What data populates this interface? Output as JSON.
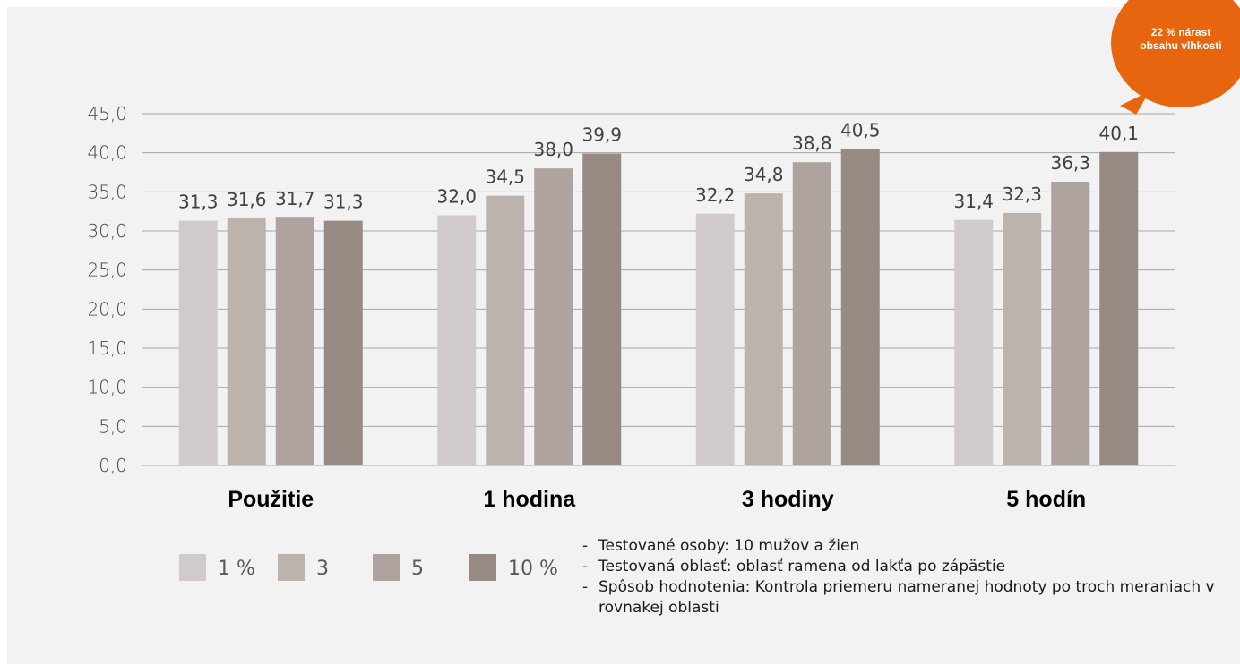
{
  "chart_data": {
    "type": "bar",
    "categories": [
      "Použitie",
      "1 hodina",
      "3 hodiny",
      "5 hodín"
    ],
    "series": [
      {
        "name": "1 %",
        "values": [
          31.3,
          32.0,
          32.2,
          31.4
        ],
        "color": "#d0cbca"
      },
      {
        "name": "3",
        "values": [
          31.6,
          34.5,
          34.8,
          32.3
        ],
        "color": "#bdb3ad"
      },
      {
        "name": "5",
        "values": [
          31.7,
          38.0,
          38.8,
          36.3
        ],
        "color": "#afa39f"
      },
      {
        "name": "10 %",
        "values": [
          31.3,
          39.9,
          40.5,
          40.1
        ],
        "color": "#978a82"
      }
    ],
    "data_labels": [
      [
        "31,3",
        "32,0",
        "32,2",
        "31,4"
      ],
      [
        "31,6",
        "34,5",
        "34,8",
        "32,3"
      ],
      [
        "31,7",
        "38,0",
        "38,8",
        "36,3"
      ],
      [
        "31,3",
        "39,9",
        "40,5",
        "40,1"
      ]
    ],
    "y_ticks": [
      "0,0",
      "5,0",
      "10,0",
      "15,0",
      "20,0",
      "25,0",
      "30,0",
      "35,0",
      "40,0",
      "45,0"
    ],
    "ylim": [
      0,
      45
    ],
    "grid": true,
    "legend_position": "bottom-left",
    "callout": "22 % nárast obsahu vlhkosti",
    "callout_color": "#e8650f"
  },
  "notes": [
    "Testované osoby: 10 mužov a žien",
    "Testovaná oblasť: oblasť ramena od lakťa po zápästie",
    "Spôsob hodnotenia: Kontrola priemeru nameranej hodnoty po troch meraniach v rovnakej oblasti"
  ]
}
